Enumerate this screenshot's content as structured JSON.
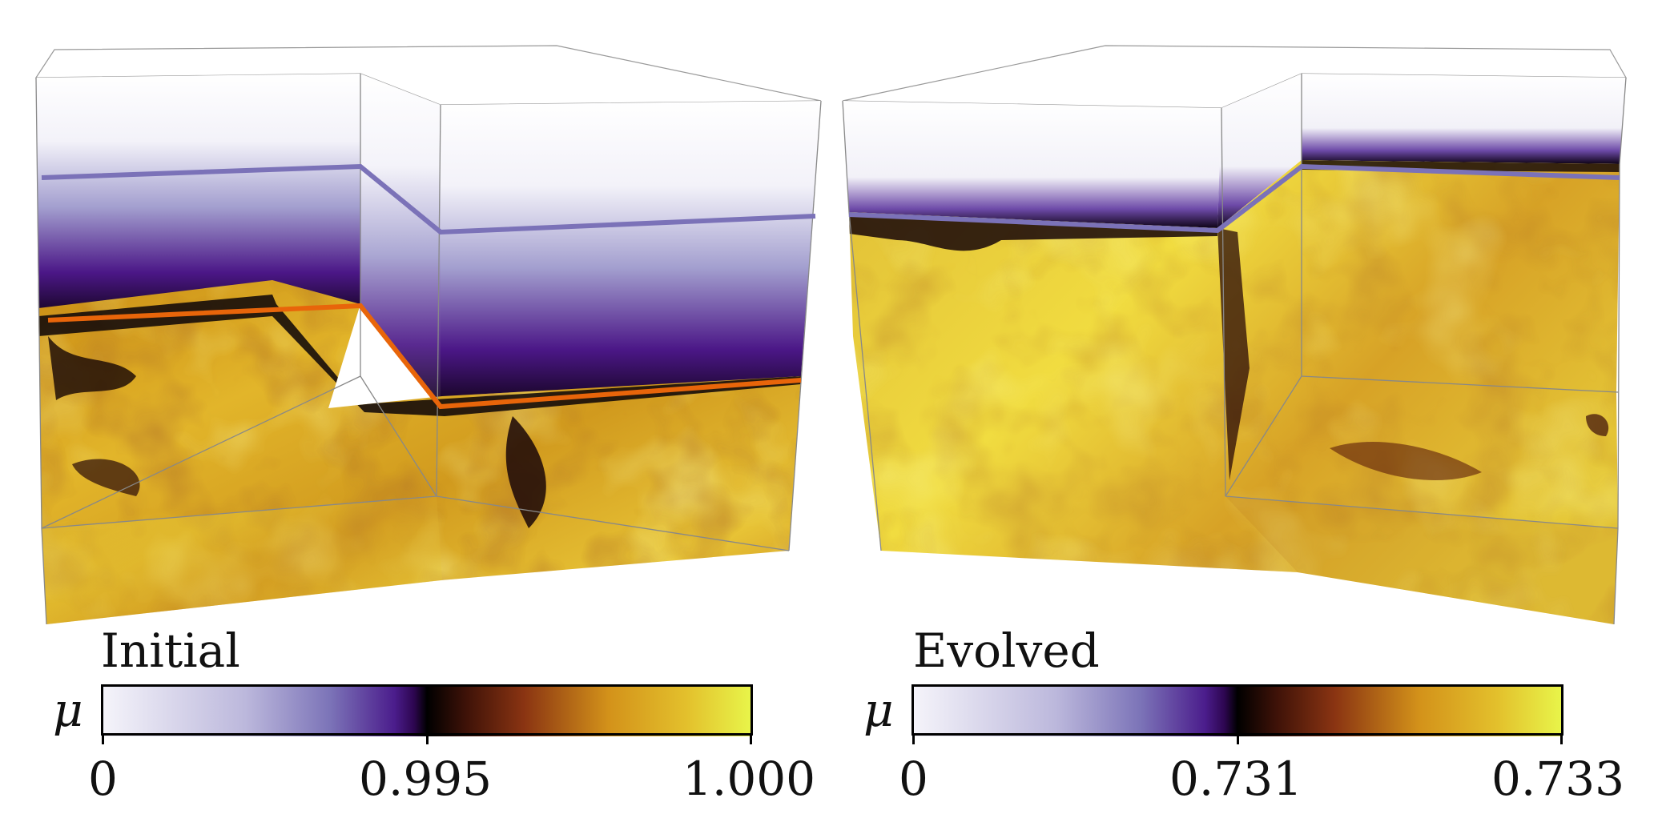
{
  "panels": [
    {
      "title": "Initial",
      "colorbar": {
        "symbol": "μ",
        "tick_labels": [
          "0",
          "0.995",
          "1.000"
        ]
      }
    },
    {
      "title": "Evolved",
      "colorbar": {
        "symbol": "μ",
        "tick_labels": [
          "0",
          "0.731",
          "0.733"
        ]
      }
    }
  ],
  "colors": {
    "upper_layer_line": "#7b72b8",
    "interface_line": "#e8650a",
    "colormap_stops": [
      "#f5f4fa",
      "#7c74b8",
      "#3a0a6e",
      "#000000",
      "#7a2a0f",
      "#d3921a",
      "#e6c52a",
      "#e8f54a"
    ]
  }
}
